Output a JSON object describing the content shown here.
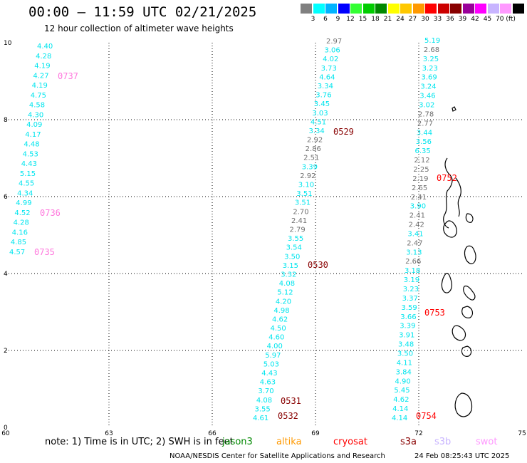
{
  "header": {
    "title": "00:00 – 11:59 UTC 02/21/2025",
    "subtitle": "12 hour collection of altimeter wave heights"
  },
  "color_scale": {
    "colors": [
      "#808080",
      "#00ffff",
      "#00b4ff",
      "#0000ff",
      "#33ff33",
      "#00cc00",
      "#008800",
      "#ffff00",
      "#ffc800",
      "#ff9900",
      "#ff0000",
      "#cc0000",
      "#880000",
      "#990099",
      "#ff00ff",
      "#c8b4ff",
      "#ff99ff",
      "#000000"
    ],
    "labels": [
      "3",
      "6",
      "9",
      "12",
      "15",
      "18",
      "21",
      "24",
      "27",
      "30",
      "33",
      "36",
      "39",
      "42",
      "45",
      "70 (ft)"
    ]
  },
  "map": {
    "x_ticks": [
      "60",
      "63",
      "66",
      "69",
      "72",
      "75"
    ],
    "y_ticks": [
      "0",
      "2",
      "4",
      "6",
      "8",
      "10"
    ],
    "tracks": [
      {
        "label": "0737",
        "label_color": "#ff77dd",
        "label_pos": [
          81,
          111
        ]
      },
      {
        "label": "0736",
        "label_color": "#ff77dd",
        "label_pos": [
          56,
          303
        ]
      },
      {
        "label": "0735",
        "label_color": "#ff77dd",
        "label_pos": [
          48,
          358
        ]
      },
      {
        "label": "0529",
        "label_color": "#880000",
        "label_pos": [
          468,
          189
        ]
      },
      {
        "label": "0530",
        "label_color": "#880000",
        "label_pos": [
          432,
          376
        ]
      },
      {
        "label": "0531",
        "label_color": "#880000",
        "label_pos": [
          394,
          567
        ]
      },
      {
        "label": "0532",
        "label_color": "#880000",
        "label_pos": [
          390,
          588
        ]
      },
      {
        "label": "0752",
        "label_color": "#ff0000",
        "label_pos": [
          613,
          254
        ]
      },
      {
        "label": "0753",
        "label_color": "#ff0000",
        "label_pos": [
          596,
          443
        ]
      },
      {
        "label": "0754",
        "label_color": "#ff0000",
        "label_pos": [
          584,
          588
        ]
      }
    ],
    "swh_values": [
      {
        "v": "4.40",
        "c": "c"
      },
      {
        "v": "4.28",
        "c": "c"
      },
      {
        "v": "4.19",
        "c": "c"
      },
      {
        "v": "4.27",
        "c": "c"
      },
      {
        "v": "4.19",
        "c": "c"
      },
      {
        "v": "4.75",
        "c": "c"
      },
      {
        "v": "4.58",
        "c": "c"
      },
      {
        "v": "4.30",
        "c": "c"
      },
      {
        "v": "4.09",
        "c": "c"
      },
      {
        "v": "4.17",
        "c": "c"
      },
      {
        "v": "4.48",
        "c": "c"
      },
      {
        "v": "4.53",
        "c": "c"
      },
      {
        "v": "4.43",
        "c": "c"
      },
      {
        "v": "5.15",
        "c": "c"
      },
      {
        "v": "4.55",
        "c": "c"
      },
      {
        "v": "4.34",
        "c": "c"
      },
      {
        "v": "4.99",
        "c": "c"
      },
      {
        "v": "4.52",
        "c": "c"
      },
      {
        "v": "4.28",
        "c": "c"
      },
      {
        "v": "4.16",
        "c": "c"
      },
      {
        "v": "4.85",
        "c": "c"
      },
      {
        "v": "4.57",
        "c": "c"
      },
      {
        "v": "2.97",
        "c": "g"
      },
      {
        "v": "3.06",
        "c": "c"
      },
      {
        "v": "4.02",
        "c": "c"
      },
      {
        "v": "3.73",
        "c": "c"
      },
      {
        "v": "4.64",
        "c": "c"
      },
      {
        "v": "3.34",
        "c": "c"
      },
      {
        "v": "3.76",
        "c": "c"
      },
      {
        "v": "3.45",
        "c": "c"
      },
      {
        "v": "3.03",
        "c": "c"
      },
      {
        "v": "4.51",
        "c": "c"
      },
      {
        "v": "3.34",
        "c": "c"
      },
      {
        "v": "2.92",
        "c": "g"
      },
      {
        "v": "2.86",
        "c": "g"
      },
      {
        "v": "2.51",
        "c": "g"
      },
      {
        "v": "3.39",
        "c": "c"
      },
      {
        "v": "2.92",
        "c": "g"
      },
      {
        "v": "3.10",
        "c": "c"
      },
      {
        "v": "3.51",
        "c": "c"
      },
      {
        "v": "3.51",
        "c": "c"
      },
      {
        "v": "2.70",
        "c": "g"
      },
      {
        "v": "2.41",
        "c": "g"
      },
      {
        "v": "2.79",
        "c": "g"
      },
      {
        "v": "3.55",
        "c": "c"
      },
      {
        "v": "3.54",
        "c": "c"
      },
      {
        "v": "3.50",
        "c": "c"
      },
      {
        "v": "3.15",
        "c": "c"
      },
      {
        "v": "3.32",
        "c": "c"
      },
      {
        "v": "4.08",
        "c": "c"
      },
      {
        "v": "5.12",
        "c": "c"
      },
      {
        "v": "4.20",
        "c": "c"
      },
      {
        "v": "4.98",
        "c": "c"
      },
      {
        "v": "4.62",
        "c": "c"
      },
      {
        "v": "4.50",
        "c": "c"
      },
      {
        "v": "4.60",
        "c": "c"
      },
      {
        "v": "4.00",
        "c": "c"
      },
      {
        "v": "5.97",
        "c": "c"
      },
      {
        "v": "5.03",
        "c": "c"
      },
      {
        "v": "4.43",
        "c": "c"
      },
      {
        "v": "4.63",
        "c": "c"
      },
      {
        "v": "3.70",
        "c": "c"
      },
      {
        "v": "4.08",
        "c": "c"
      },
      {
        "v": "3.55",
        "c": "c"
      },
      {
        "v": "4.61",
        "c": "c"
      },
      {
        "v": "5.19",
        "c": "c"
      },
      {
        "v": "2.68",
        "c": "g"
      },
      {
        "v": "3.25",
        "c": "c"
      },
      {
        "v": "3.23",
        "c": "c"
      },
      {
        "v": "3.69",
        "c": "c"
      },
      {
        "v": "3.24",
        "c": "c"
      },
      {
        "v": "3.46",
        "c": "c"
      },
      {
        "v": "3.02",
        "c": "c"
      },
      {
        "v": "2.78",
        "c": "g"
      },
      {
        "v": "2.77",
        "c": "g"
      },
      {
        "v": "3.44",
        "c": "c"
      },
      {
        "v": "3.56",
        "c": "c"
      },
      {
        "v": "6.35",
        "c": "c"
      },
      {
        "v": "2.12",
        "c": "g"
      },
      {
        "v": "2.25",
        "c": "g"
      },
      {
        "v": "2.19",
        "c": "g"
      },
      {
        "v": "2.65",
        "c": "g"
      },
      {
        "v": "2.41",
        "c": "g"
      },
      {
        "v": "3.90",
        "c": "c"
      },
      {
        "v": "2.41",
        "c": "g"
      },
      {
        "v": "2.42",
        "c": "g"
      },
      {
        "v": "3.41",
        "c": "c"
      },
      {
        "v": "2.47",
        "c": "g"
      },
      {
        "v": "3.13",
        "c": "c"
      },
      {
        "v": "2.66",
        "c": "g"
      },
      {
        "v": "3.18",
        "c": "c"
      },
      {
        "v": "3.19",
        "c": "c"
      },
      {
        "v": "3.23",
        "c": "c"
      },
      {
        "v": "3.37",
        "c": "c"
      },
      {
        "v": "3.59",
        "c": "c"
      },
      {
        "v": "3.66",
        "c": "c"
      },
      {
        "v": "3.39",
        "c": "c"
      },
      {
        "v": "3.91",
        "c": "c"
      },
      {
        "v": "3.48",
        "c": "c"
      },
      {
        "v": "3.50",
        "c": "c"
      },
      {
        "v": "4.11",
        "c": "c"
      },
      {
        "v": "3.84",
        "c": "c"
      },
      {
        "v": "4.90",
        "c": "c"
      },
      {
        "v": "5.45",
        "c": "c"
      },
      {
        "v": "4.62",
        "c": "c"
      },
      {
        "v": "4.14",
        "c": "c"
      },
      {
        "v": "4.14",
        "c": "c"
      },
      {
        "v": "3.99",
        "c": "c"
      }
    ],
    "value_colors": {
      "c": "#00e5ee",
      "g": "#707070"
    }
  },
  "footer": {
    "note": "note:  1) Time is in UTC; 2) SWH is in feet",
    "satellites": [
      {
        "name": "jason3",
        "color": "#008800"
      },
      {
        "name": "altika",
        "color": "#ff9900"
      },
      {
        "name": "cryosat",
        "color": "#ff0000"
      },
      {
        "name": "s3a",
        "color": "#880000"
      },
      {
        "name": "s3b",
        "color": "#c8b4ff"
      },
      {
        "name": "swot",
        "color": "#ff99ff"
      }
    ],
    "credit": "NOAA/NESDIS Center for Satellite Applications and Research",
    "timestamp": "24 Feb 08:25:43 UTC 2025"
  }
}
